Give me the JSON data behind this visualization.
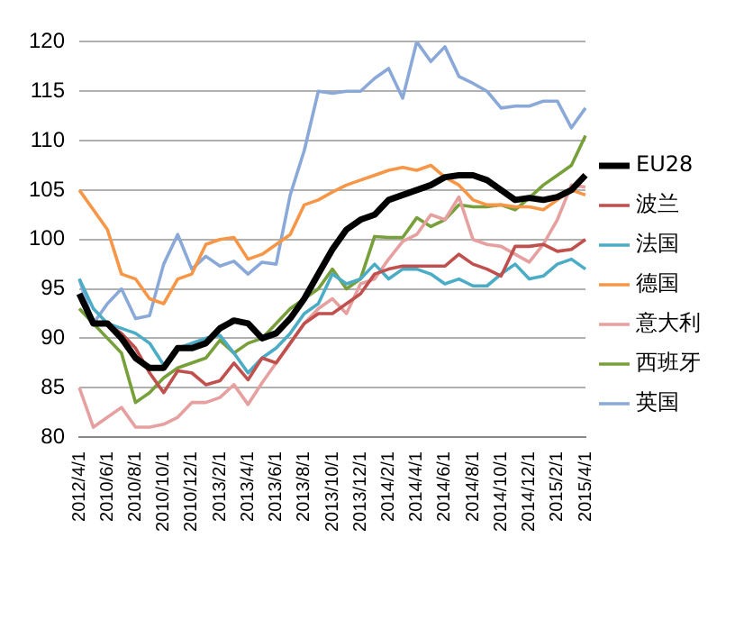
{
  "chart_data": {
    "type": "line",
    "categories": [
      "2012/4/1",
      null,
      "2010/6/1",
      null,
      "2010/8/1",
      null,
      "2010/10/1",
      null,
      "2010/12/1",
      null,
      "2013/2/1",
      null,
      "2013/4/1",
      null,
      "2013/6/1",
      null,
      "2013/8/1",
      null,
      "2013/10/1",
      null,
      "2013/12/1",
      null,
      "2014/2/1",
      null,
      "2014/4/1",
      null,
      "2014/6/1",
      null,
      "2014/8/1",
      null,
      "2014/10/1",
      null,
      "2014/12/1",
      null,
      "2015/2/1",
      null,
      "2015/4/1"
    ],
    "series": [
      {
        "name": "EU28",
        "color": "#000000",
        "values": [
          94.5,
          91.5,
          91.5,
          90,
          88,
          87,
          87,
          89,
          89,
          89.5,
          91,
          91.8,
          91.5,
          90,
          90.5,
          92,
          94,
          96.5,
          99,
          101,
          102,
          102.5,
          104,
          104.5,
          105,
          105.5,
          106.3,
          106.5,
          106.5,
          106,
          105,
          104,
          104.2,
          104,
          104.3,
          105,
          106.5
        ]
      },
      {
        "name": "波兰",
        "color": "#c0504d",
        "values": [
          null,
          null,
          91.5,
          90.5,
          89,
          86.5,
          84.5,
          86.7,
          86.5,
          85.3,
          85.7,
          87.5,
          85.8,
          88,
          87.5,
          89.5,
          91.5,
          92.5,
          92.5,
          93.5,
          94.5,
          96.5,
          97,
          97.3,
          97.3,
          97.3,
          97.3,
          98.5,
          97.5,
          97,
          96.3,
          99.3,
          99.3,
          99.5,
          98.8,
          99,
          100
        ]
      },
      {
        "name": "法国",
        "color": "#4bacc6",
        "values": [
          96,
          93,
          91.5,
          91,
          90.5,
          89.5,
          87.3,
          89,
          89.5,
          90,
          90.3,
          88.5,
          86.5,
          88,
          89,
          90.5,
          92.5,
          93.5,
          96.5,
          95.5,
          96,
          97.5,
          96,
          97,
          97,
          96.5,
          95.5,
          96,
          95.3,
          95.3,
          96.5,
          97.5,
          96,
          96.3,
          97.5,
          98,
          97
        ]
      },
      {
        "name": "德国",
        "color": "#f79646",
        "values": [
          105,
          103,
          101,
          96.5,
          96,
          94,
          93.5,
          96,
          96.5,
          99.5,
          100,
          100.2,
          98,
          98.5,
          99.5,
          100.5,
          103.5,
          104,
          104.8,
          105.5,
          106,
          106.5,
          107,
          107.3,
          107,
          107.5,
          106.3,
          105.5,
          104,
          103.5,
          103.5,
          103.3,
          103.3,
          103,
          104,
          105,
          104.5
        ]
      },
      {
        "name": "意大利",
        "color": "#e6a0a0",
        "values": [
          85,
          81,
          82,
          83,
          81,
          81,
          81.3,
          82,
          83.5,
          83.5,
          84,
          85.3,
          83.3,
          85.5,
          87.5,
          89.5,
          91.5,
          93,
          94,
          92.5,
          95.5,
          96,
          98,
          99.8,
          100.5,
          102.5,
          102,
          104.3,
          100,
          99.5,
          99.3,
          98.5,
          97.7,
          99.5,
          102,
          105.5,
          105.3
        ]
      },
      {
        "name": "西班牙",
        "color": "#77a03a",
        "values": [
          93,
          91.5,
          90,
          88.5,
          83.5,
          84.5,
          86,
          87,
          87.5,
          88,
          89.8,
          88.5,
          89.5,
          90,
          91.5,
          93,
          94,
          95,
          97,
          95,
          96,
          100.3,
          100.2,
          100.2,
          102.2,
          101.3,
          102,
          103.5,
          103.3,
          103.3,
          103.5,
          103,
          104.2,
          105.5,
          106.5,
          107.5,
          110.5
        ]
      },
      {
        "name": "英国",
        "color": "#8aa9d8",
        "values": [
          96,
          91.5,
          93.5,
          95,
          92,
          92.3,
          97.5,
          100.5,
          97,
          98.3,
          97.3,
          97.8,
          96.5,
          97.7,
          97.5,
          104.5,
          109,
          115,
          114.8,
          115,
          115,
          116.3,
          117.3,
          114.3,
          120,
          118,
          119.5,
          116.5,
          115.8,
          115,
          113.3,
          113.5,
          113.5,
          114,
          114,
          111.3,
          113.3
        ]
      }
    ],
    "ylim": [
      80,
      120
    ],
    "yticks": [
      80,
      85,
      90,
      95,
      100,
      105,
      110,
      115,
      120
    ],
    "grid": "y",
    "legend": "right",
    "marker": "none"
  }
}
